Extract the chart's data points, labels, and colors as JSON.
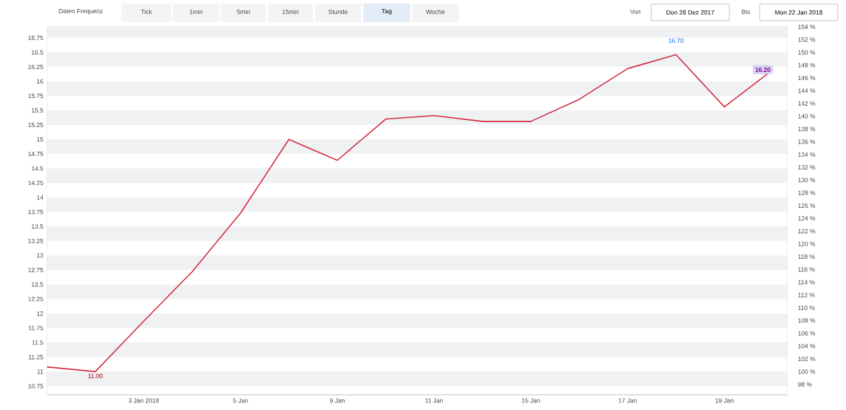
{
  "chart_data": {
    "type": "line",
    "categories": [
      null,
      null,
      "3 Jan 2018",
      null,
      "5 Jan",
      null,
      "9 Jan",
      null,
      "11 Jan",
      null,
      "15 Jan",
      null,
      "17 Jan",
      null,
      "19 Jan",
      null
    ],
    "series": [
      {
        "color": "#d0263a",
        "values": [
          11.08,
          11.0,
          11.87,
          12.72,
          13.73,
          15.0,
          14.64,
          15.35,
          15.41,
          15.31,
          15.31,
          15.69,
          16.22,
          16.46,
          15.56,
          16.2
        ]
      }
    ],
    "ylim": [
      10.6,
      16.95
    ],
    "yticks": [
      10.75,
      11,
      11.25,
      11.5,
      11.75,
      12,
      12.25,
      12.5,
      12.75,
      13,
      13.25,
      13.5,
      13.75,
      14,
      14.25,
      14.5,
      14.75,
      15,
      15.25,
      15.5,
      15.75,
      16,
      16.25,
      16.5,
      16.75
    ],
    "y2lim": [
      96.36,
      154.09
    ],
    "y2ticks": [
      {
        "value": 98,
        "label": "98 %"
      },
      {
        "value": 100,
        "label": "100 %"
      },
      {
        "value": 102,
        "label": "102 %"
      },
      {
        "value": 104,
        "label": "104 %"
      },
      {
        "value": 106,
        "label": "106 %"
      },
      {
        "value": 108,
        "label": "108 %"
      },
      {
        "value": 110,
        "label": "110 %"
      },
      {
        "value": 112,
        "label": "112 %"
      },
      {
        "value": 114,
        "label": "114 %"
      },
      {
        "value": 116,
        "label": "116 %"
      },
      {
        "value": 118,
        "label": "118 %"
      },
      {
        "value": 120,
        "label": "120 %"
      },
      {
        "value": 122,
        "label": "122 %"
      },
      {
        "value": 124,
        "label": "124 %"
      },
      {
        "value": 126,
        "label": "126 %"
      },
      {
        "value": 128,
        "label": "128 %"
      },
      {
        "value": 130,
        "label": "130 %"
      },
      {
        "value": 132,
        "label": "132 %"
      },
      {
        "value": 134,
        "label": "134 %"
      },
      {
        "value": 136,
        "label": "136 %"
      },
      {
        "value": 138,
        "label": "138 %"
      },
      {
        "value": 140,
        "label": "140 %"
      },
      {
        "value": 142,
        "label": "142 %"
      },
      {
        "value": 144,
        "label": "144 %"
      },
      {
        "value": 146,
        "label": "146 %"
      },
      {
        "value": 148,
        "label": "148 %"
      },
      {
        "value": 150,
        "label": "150 %"
      },
      {
        "value": 152,
        "label": "152 %"
      },
      {
        "value": 154,
        "label": "154 %"
      }
    ],
    "marker": "none",
    "line_style": "solid",
    "annotations": [
      "Daten Frequenz",
      "Tick",
      "1min",
      "5min",
      "15min",
      "Stunde",
      "Tag",
      "Woche",
      "Von",
      "Don 28 Dez 2017",
      "Bis",
      "Mon 22 Jan 2018",
      {
        "text": "11.00",
        "y": 11.0
      },
      "16.70",
      {
        "text": "16.20",
        "y": 16.2
      }
    ]
  }
}
